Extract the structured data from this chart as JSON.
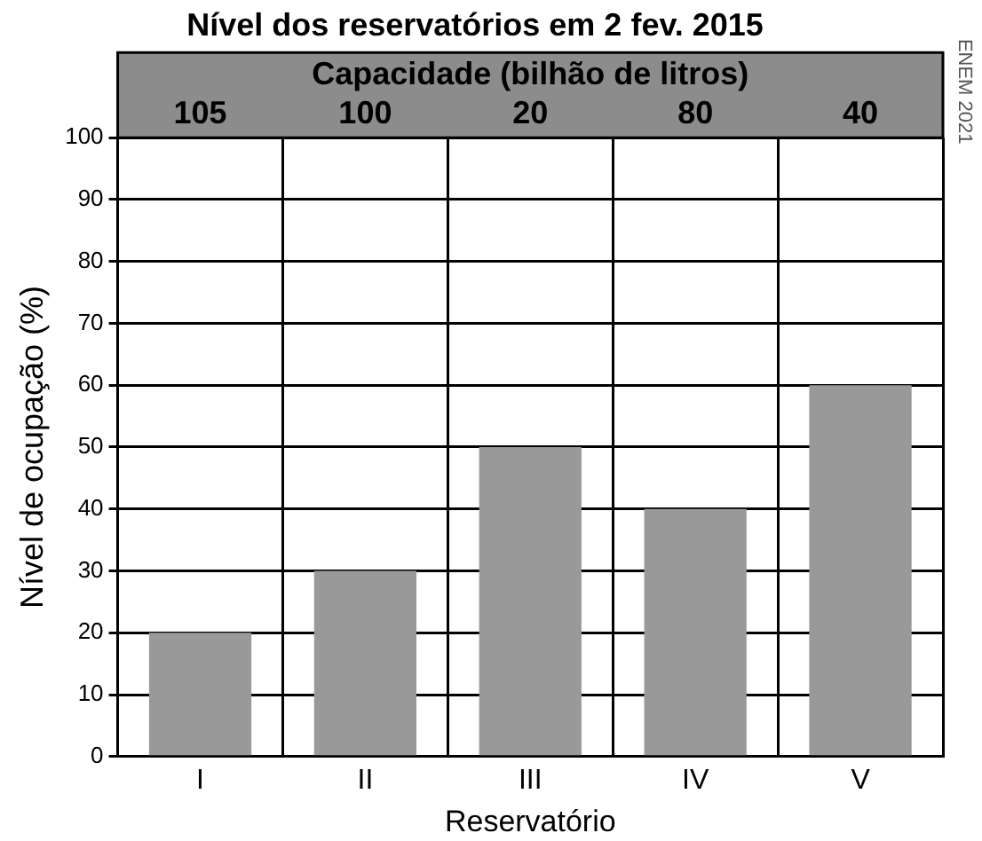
{
  "chart_data": {
    "type": "bar",
    "title": "Nível dos reservatórios em 2 fev. 2015",
    "xlabel": "Reservatório",
    "ylabel": "Nível de ocupação (%)",
    "categories": [
      "I",
      "II",
      "III",
      "IV",
      "V"
    ],
    "values": [
      20,
      30,
      50,
      40,
      60
    ],
    "color": "#999999",
    "ylim": [
      0,
      100
    ],
    "yticks": [
      0,
      10,
      20,
      30,
      40,
      50,
      60,
      70,
      80,
      90,
      100
    ],
    "grid": true,
    "annotations": [
      "Capacidade (bilhão de litros)",
      "ENEM 2021",
      "105",
      "100",
      "20",
      "80",
      "40"
    ]
  }
}
